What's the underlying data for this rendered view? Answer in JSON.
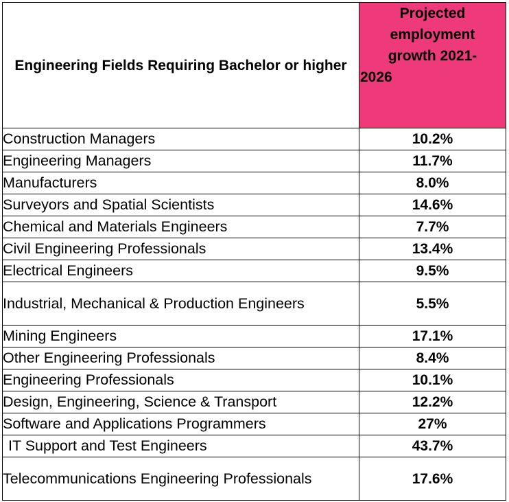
{
  "header": {
    "field_label": "Engineering Fields Requiring Bachelor or higher",
    "growth_label_lines": [
      "Projected",
      "employment",
      "growth 2021-",
      "2026"
    ],
    "growth_header_bg": "#ee3a7a"
  },
  "rows": [
    {
      "field": "Construction Managers",
      "growth": "10.2%"
    },
    {
      "field": "Engineering Managers",
      "growth": "11.7%"
    },
    {
      "field": "Manufacturers",
      "growth": "8.0%"
    },
    {
      "field": "Surveyors and Spatial Scientists",
      "growth": "14.6%"
    },
    {
      "field": "Chemical and Materials Engineers",
      "growth": "7.7%"
    },
    {
      "field": "Civil Engineering Professionals",
      "growth": "13.4%"
    },
    {
      "field": "Electrical Engineers",
      "growth": "9.5%"
    },
    {
      "field": "Industrial, Mechanical & Production Engineers",
      "growth": "5.5%"
    },
    {
      "field": "Mining Engineers",
      "growth": "17.1%"
    },
    {
      "field": "Other Engineering Professionals",
      "growth": "8.4%"
    },
    {
      "field": "Engineering Professionals",
      "growth": "10.1%"
    },
    {
      "field": "Design, Engineering, Science & Transport",
      "growth": "12.2%"
    },
    {
      "field": "Software and Applications Programmers",
      "growth": "27%"
    },
    {
      "field": "IT Support and Test Engineers",
      "growth": "43.7%"
    },
    {
      "field": "Telecommunications Engineering Professionals",
      "growth": "17.6%"
    }
  ]
}
